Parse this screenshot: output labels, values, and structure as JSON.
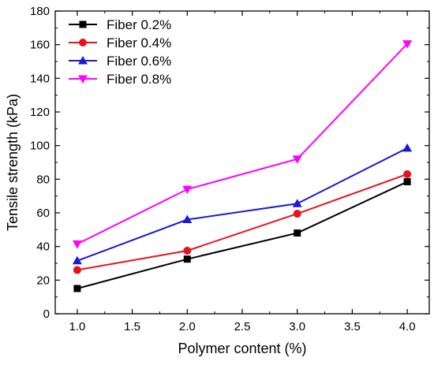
{
  "chart_data": {
    "type": "line",
    "xlabel": "Polymer content (%)",
    "ylabel": "Tensile strength (kPa)",
    "x": [
      1.0,
      2.0,
      3.0,
      4.0
    ],
    "xlim": [
      0.8,
      4.2
    ],
    "ylim": [
      0,
      180
    ],
    "xticks": [
      "1.0",
      "1.5",
      "2.0",
      "2.5",
      "3.0",
      "3.5",
      "4.0"
    ],
    "yticks": [
      "0",
      "20",
      "40",
      "60",
      "80",
      "100",
      "120",
      "140",
      "160",
      "180"
    ],
    "legend_position": "top-left",
    "grid": false,
    "series": [
      {
        "name": "Fiber 0.2%",
        "color": "#000000",
        "marker": "square",
        "values": [
          15,
          32.5,
          48,
          78.5
        ]
      },
      {
        "name": "Fiber 0.4%",
        "color": "#e8121a",
        "marker": "circle",
        "values": [
          26,
          37.5,
          59.5,
          83
        ]
      },
      {
        "name": "Fiber 0.6%",
        "color": "#1a1ad6",
        "marker": "triangle-up",
        "values": [
          31.5,
          56,
          65.5,
          98.5
        ]
      },
      {
        "name": "Fiber 0.8%",
        "color": "#ff00ff",
        "marker": "triangle-down",
        "values": [
          41.5,
          74,
          92,
          160.5
        ]
      }
    ]
  }
}
